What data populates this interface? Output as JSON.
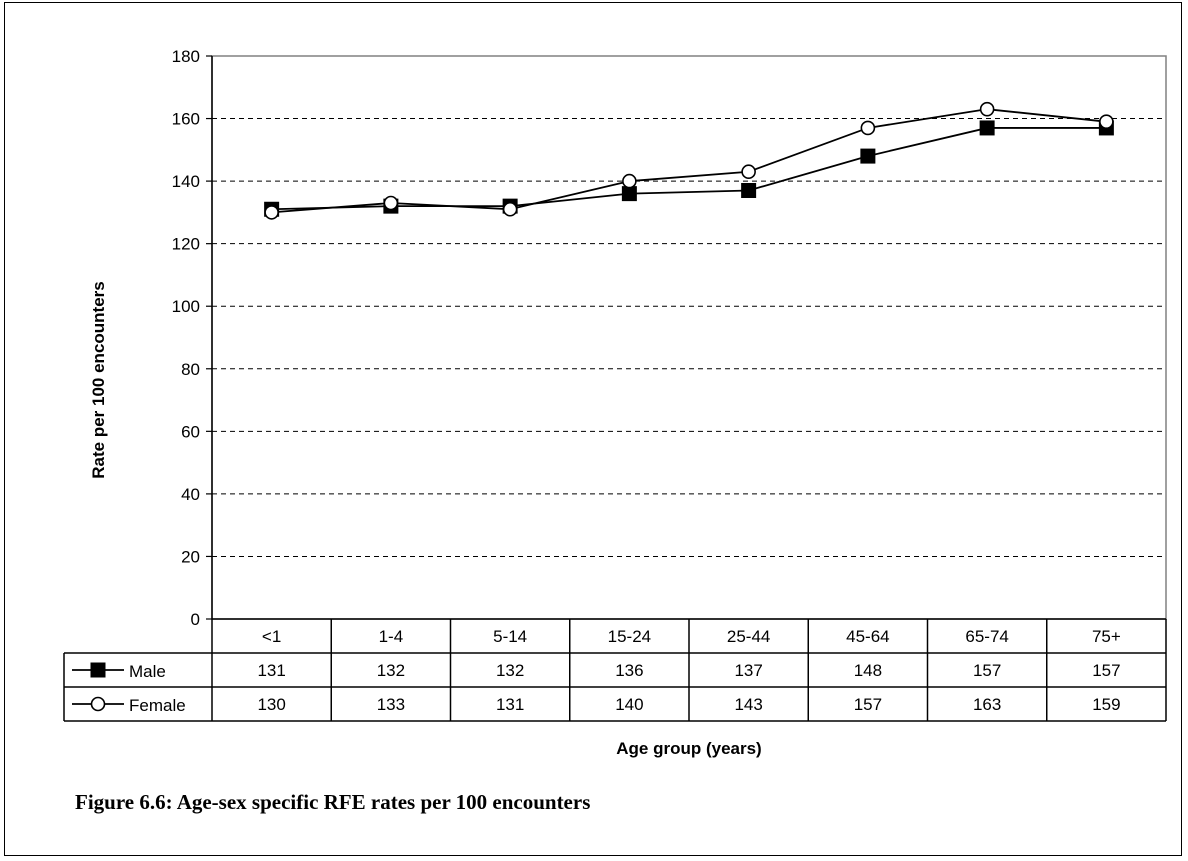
{
  "caption": "Figure 6.6: Age-sex specific RFE rates per 100 encounters",
  "chart_data": {
    "type": "line",
    "title": "",
    "xlabel": "Age group (years)",
    "ylabel": "Rate per 100 encounters",
    "ylim": [
      0,
      180
    ],
    "ytick_step": 20,
    "grid": true,
    "categories": [
      "<1",
      "1-4",
      "5-14",
      "15-24",
      "25-44",
      "45-64",
      "65-74",
      "75+"
    ],
    "series": [
      {
        "name": "Male",
        "marker": "filled-square",
        "values": [
          131,
          132,
          132,
          136,
          137,
          148,
          157,
          157
        ]
      },
      {
        "name": "Female",
        "marker": "open-circle",
        "values": [
          130,
          133,
          131,
          140,
          143,
          157,
          163,
          159
        ]
      }
    ],
    "legend": "data-table"
  }
}
